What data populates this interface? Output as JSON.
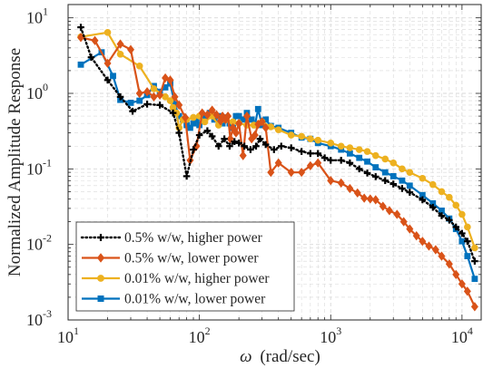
{
  "chart_data": {
    "type": "line",
    "title": "",
    "xlabel_symbol": "ω",
    "xlabel_unit": "(rad/sec)",
    "ylabel": "Normalized Amplitude Response",
    "xscale": "log",
    "yscale": "log",
    "xlim": [
      10,
      14000
    ],
    "ylim": [
      0.001,
      15
    ],
    "grid": "major and minor, dashed",
    "legend_position": "lower-left",
    "x_ticks": [
      {
        "base": "10",
        "exp": "1",
        "value": 10
      },
      {
        "base": "10",
        "exp": "2",
        "value": 100
      },
      {
        "base": "10",
        "exp": "3",
        "value": 1000
      },
      {
        "base": "10",
        "exp": "4",
        "value": 10000
      }
    ],
    "y_ticks": [
      {
        "base": "10",
        "exp": "-3",
        "value": 0.001
      },
      {
        "base": "10",
        "exp": "-2",
        "value": 0.01
      },
      {
        "base": "10",
        "exp": "-1",
        "value": 0.1
      },
      {
        "base": "10",
        "exp": "0",
        "value": 1
      },
      {
        "base": "10",
        "exp": "1",
        "value": 10
      }
    ],
    "series": [
      {
        "name": "0.5% w/w, higher power",
        "color": "#000000",
        "marker": "plus",
        "line": "dotted",
        "x": [
          12.5,
          15,
          20,
          25,
          31,
          40,
          50,
          63,
          70,
          80,
          90,
          100,
          115,
          125,
          140,
          155,
          170,
          185,
          200,
          220,
          245,
          270,
          290,
          320,
          370,
          420,
          500,
          600,
          700,
          800,
          900,
          1000,
          1200,
          1400,
          1650,
          1900,
          2200,
          2600,
          3000,
          3500,
          4000,
          5000,
          6000,
          7000,
          8000,
          9000,
          10000,
          11000,
          12500
        ],
        "y": [
          7.5,
          3.0,
          1.5,
          0.9,
          0.58,
          0.72,
          0.7,
          0.55,
          0.3,
          0.08,
          0.18,
          0.28,
          0.32,
          0.27,
          0.2,
          0.25,
          0.2,
          0.23,
          0.22,
          0.2,
          0.18,
          0.2,
          0.25,
          0.21,
          0.18,
          0.2,
          0.19,
          0.17,
          0.16,
          0.16,
          0.14,
          0.13,
          0.13,
          0.12,
          0.1,
          0.088,
          0.079,
          0.07,
          0.063,
          0.055,
          0.049,
          0.039,
          0.031,
          0.024,
          0.021,
          0.017,
          0.014,
          0.011,
          0.006
        ]
      },
      {
        "name": "0.5% w/w, lower power",
        "color": "#D95319",
        "marker": "diamond",
        "line": "solid",
        "x": [
          12.5,
          16,
          20,
          25,
          30,
          35,
          40,
          45,
          50,
          55,
          60,
          65,
          70,
          78,
          85,
          95,
          105,
          115,
          125,
          135,
          145,
          150,
          158,
          165,
          172,
          180,
          190,
          200,
          215,
          230,
          250,
          265,
          280,
          300,
          320,
          350,
          400,
          500,
          600,
          700,
          800,
          1000,
          1200,
          1400,
          1600,
          1800,
          2000,
          2200,
          2500,
          2800,
          3200,
          3600,
          4000,
          4500,
          5000,
          5600,
          6300,
          7000,
          8000,
          9000,
          10000,
          11000,
          12500
        ],
        "y": [
          5.5,
          5.0,
          2.5,
          4.5,
          3.8,
          1.0,
          1.05,
          0.9,
          0.95,
          1.6,
          1.5,
          0.9,
          0.7,
          0.48,
          0.13,
          0.2,
          0.55,
          0.52,
          0.6,
          0.52,
          0.43,
          0.5,
          0.45,
          0.5,
          0.25,
          0.35,
          0.3,
          0.4,
          0.15,
          0.5,
          0.25,
          0.28,
          0.39,
          0.42,
          0.35,
          0.09,
          0.12,
          0.09,
          0.09,
          0.11,
          0.12,
          0.07,
          0.065,
          0.055,
          0.048,
          0.041,
          0.04,
          0.039,
          0.032,
          0.028,
          0.025,
          0.02,
          0.016,
          0.013,
          0.011,
          0.0095,
          0.0085,
          0.007,
          0.0055,
          0.004,
          0.003,
          0.0024,
          0.0015
        ]
      },
      {
        "name": "0.01% w/w, higher power",
        "color": "#EDB120",
        "marker": "circle",
        "line": "solid",
        "x": [
          12.5,
          20,
          25,
          35,
          45,
          55,
          60,
          63,
          67,
          70,
          75,
          80,
          90,
          100,
          110,
          125,
          140,
          160,
          180,
          200,
          230,
          260,
          300,
          350,
          400,
          500,
          600,
          700,
          800,
          1000,
          1200,
          1400,
          1650,
          1900,
          2200,
          2600,
          3000,
          3500,
          4000,
          5000,
          6000,
          7000,
          8000,
          9000,
          10000,
          11000,
          12500
        ],
        "y": [
          5.6,
          6.4,
          3.3,
          2.3,
          1.15,
          0.9,
          0.8,
          0.65,
          0.55,
          0.35,
          0.45,
          0.45,
          0.48,
          0.5,
          0.42,
          0.5,
          0.38,
          0.45,
          0.42,
          0.4,
          0.38,
          0.38,
          0.42,
          0.36,
          0.33,
          0.28,
          0.27,
          0.25,
          0.24,
          0.22,
          0.2,
          0.19,
          0.18,
          0.17,
          0.15,
          0.135,
          0.12,
          0.1,
          0.09,
          0.075,
          0.062,
          0.05,
          0.042,
          0.033,
          0.025,
          0.017,
          0.009
        ]
      },
      {
        "name": "0.01% w/w, lower power",
        "color": "#0072BD",
        "marker": "square",
        "line": "solid",
        "x": [
          12.5,
          18,
          22,
          25,
          30,
          35,
          40,
          45,
          50,
          55,
          60,
          65,
          70,
          75,
          80,
          85,
          90,
          95,
          100,
          110,
          120,
          130,
          140,
          150,
          160,
          170,
          180,
          190,
          200,
          215,
          230,
          250,
          265,
          280,
          300,
          320,
          350,
          400,
          500,
          600,
          700,
          800,
          1000,
          1200,
          1400,
          1650,
          1900,
          2200,
          2600,
          3000,
          3500,
          4000,
          5000,
          6000,
          7000,
          8000,
          9000,
          10000,
          11000,
          12500
        ],
        "y": [
          2.4,
          3.5,
          1.7,
          0.82,
          0.75,
          0.8,
          0.95,
          1.25,
          1.05,
          1.2,
          1.35,
          0.72,
          0.5,
          0.45,
          0.38,
          0.35,
          0.4,
          0.45,
          0.38,
          0.48,
          0.55,
          0.45,
          0.5,
          0.4,
          0.48,
          0.4,
          0.35,
          0.5,
          0.5,
          0.45,
          0.55,
          0.45,
          0.38,
          0.62,
          0.38,
          0.45,
          0.37,
          0.35,
          0.3,
          0.26,
          0.25,
          0.22,
          0.2,
          0.18,
          0.16,
          0.14,
          0.125,
          0.105,
          0.09,
          0.08,
          0.07,
          0.06,
          0.045,
          0.035,
          0.028,
          0.022,
          0.016,
          0.011,
          0.007,
          0.0035
        ]
      }
    ]
  }
}
